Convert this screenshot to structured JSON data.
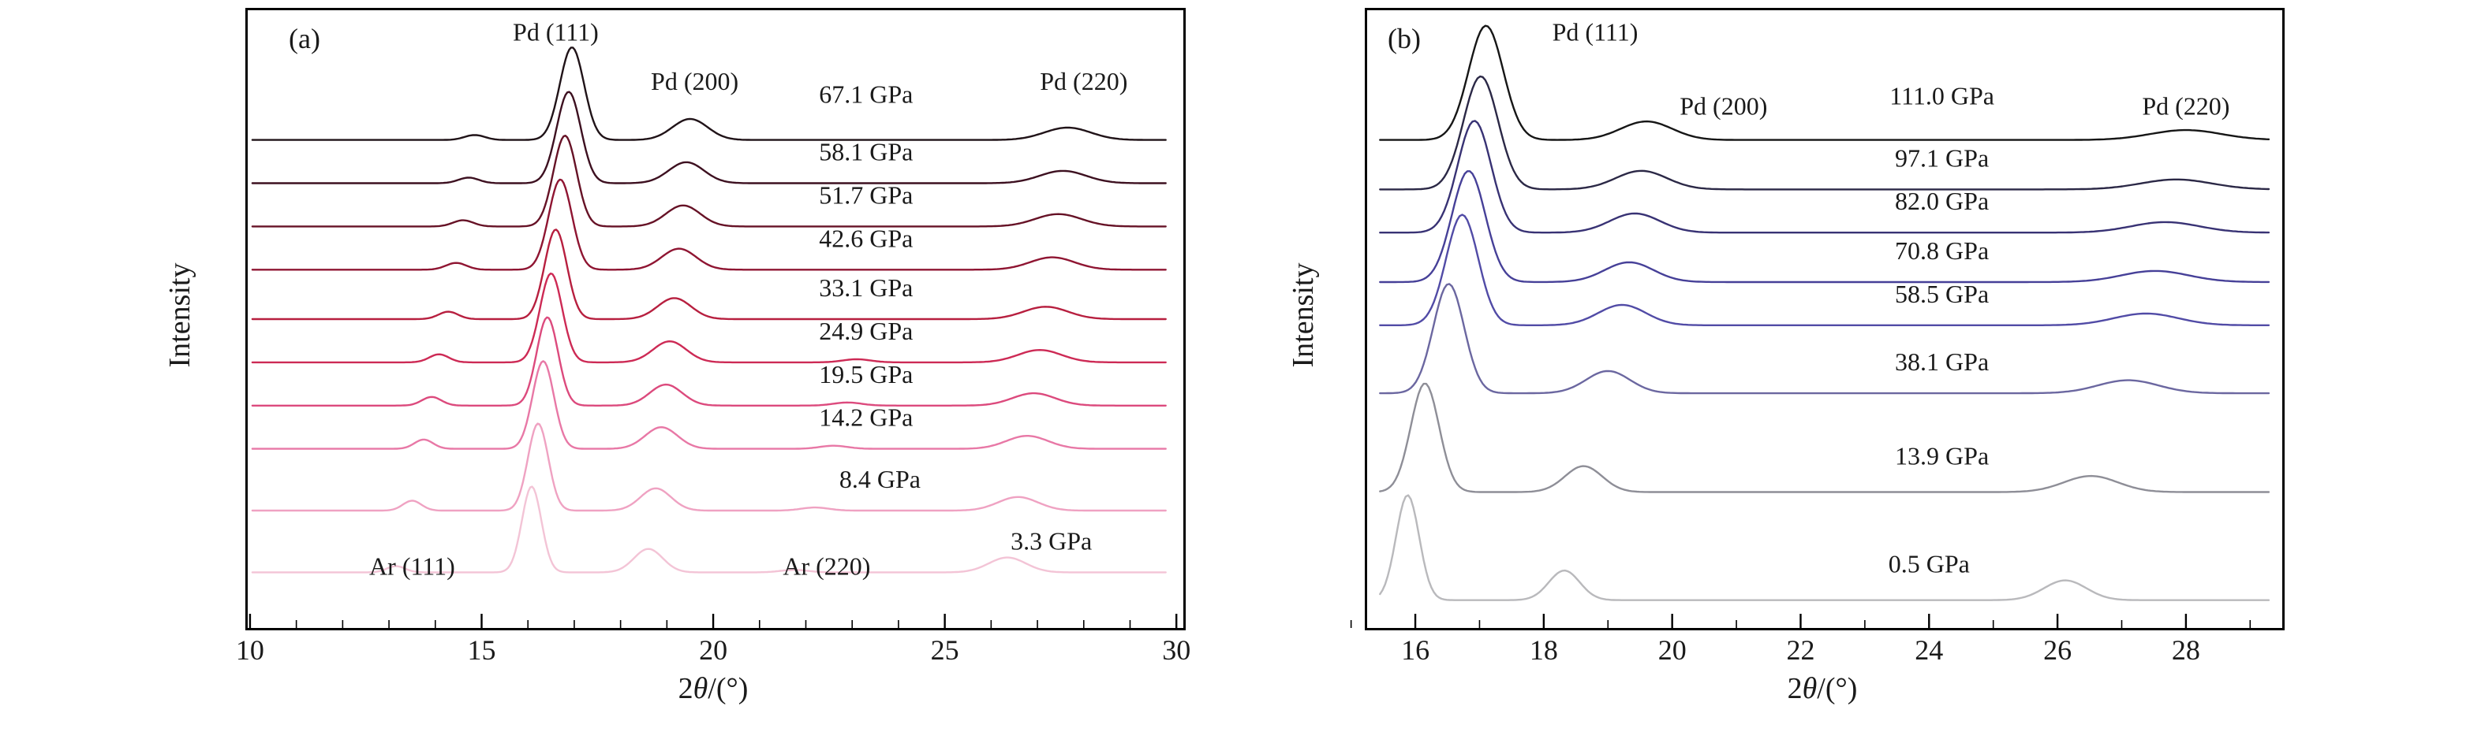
{
  "figure": {
    "background": "#ffffff",
    "axis_color": "#000000",
    "text_color": "#1a1a1a"
  },
  "chart_data": [
    {
      "type": "line",
      "panel_label": "(a)",
      "title": "",
      "xlabel": "2θ/(°)",
      "ylabel": "Intensity",
      "xlim": [
        9.95,
        30.15
      ],
      "x_ticks": [
        10,
        15,
        20,
        25,
        30
      ],
      "x_minor_ticks": [
        11,
        12,
        13,
        14,
        16,
        17,
        18,
        19,
        21,
        22,
        23,
        24,
        26,
        27,
        28,
        29
      ],
      "draw_range": [
        10.05,
        29.8
      ],
      "grid": false,
      "legend": "none",
      "annotations": [
        {
          "text": "Pd (111)",
          "x": 16.6,
          "y": 0.035
        },
        {
          "text": "Pd (200)",
          "x": 19.6,
          "y": 0.115
        },
        {
          "text": "Pd (220)",
          "x": 28.0,
          "y": 0.115
        },
        {
          "text": "Ar (111)",
          "x": 13.5,
          "y": 0.9
        },
        {
          "text": "Ar (220)",
          "x": 22.45,
          "y": 0.9
        }
      ],
      "series": [
        {
          "label": "67.1 GPa",
          "color": "#201318",
          "offset": 0.79,
          "label_x": 23.3,
          "label_dy": 58,
          "peaks": [
            {
              "c": 16.95,
              "h": 0.15,
              "w": 0.26
            },
            {
              "c": 19.5,
              "h": 0.034,
              "w": 0.38
            },
            {
              "c": 27.65,
              "h": 0.02,
              "w": 0.5
            },
            {
              "c": 14.85,
              "h": 0.008,
              "w": 0.22
            }
          ]
        },
        {
          "label": "58.1 GPa",
          "color": "#3d1020",
          "offset": 0.72,
          "label_x": 23.3,
          "peaks": [
            {
              "c": 16.88,
              "h": 0.148,
              "w": 0.26
            },
            {
              "c": 19.42,
              "h": 0.034,
              "w": 0.38
            },
            {
              "c": 27.55,
              "h": 0.02,
              "w": 0.5
            },
            {
              "c": 14.72,
              "h": 0.009,
              "w": 0.22
            }
          ]
        },
        {
          "label": "51.7 GPa",
          "color": "#661226",
          "offset": 0.65,
          "label_x": 23.3,
          "peaks": [
            {
              "c": 16.8,
              "h": 0.147,
              "w": 0.25
            },
            {
              "c": 19.35,
              "h": 0.034,
              "w": 0.37
            },
            {
              "c": 27.45,
              "h": 0.02,
              "w": 0.5
            },
            {
              "c": 14.6,
              "h": 0.01,
              "w": 0.22
            }
          ]
        },
        {
          "label": "42.6 GPa",
          "color": "#8f1532",
          "offset": 0.58,
          "label_x": 23.3,
          "peaks": [
            {
              "c": 16.7,
              "h": 0.146,
              "w": 0.25
            },
            {
              "c": 19.26,
              "h": 0.034,
              "w": 0.37
            },
            {
              "c": 27.32,
              "h": 0.02,
              "w": 0.48
            },
            {
              "c": 14.45,
              "h": 0.011,
              "w": 0.22
            }
          ]
        },
        {
          "label": "33.1 GPa",
          "color": "#b71f3f",
          "offset": 0.5,
          "label_x": 23.3,
          "peaks": [
            {
              "c": 16.6,
              "h": 0.145,
              "w": 0.24
            },
            {
              "c": 19.16,
              "h": 0.034,
              "w": 0.36
            },
            {
              "c": 27.18,
              "h": 0.02,
              "w": 0.48
            },
            {
              "c": 14.28,
              "h": 0.012,
              "w": 0.21
            }
          ]
        },
        {
          "label": "24.9 GPa",
          "color": "#cd2a55",
          "offset": 0.43,
          "label_x": 23.3,
          "peaks": [
            {
              "c": 16.5,
              "h": 0.144,
              "w": 0.24
            },
            {
              "c": 19.06,
              "h": 0.034,
              "w": 0.36
            },
            {
              "c": 27.05,
              "h": 0.02,
              "w": 0.47
            },
            {
              "c": 14.08,
              "h": 0.013,
              "w": 0.21
            },
            {
              "c": 23.1,
              "h": 0.005,
              "w": 0.3
            }
          ]
        },
        {
          "label": "19.5 GPa",
          "color": "#dc4a7d",
          "offset": 0.36,
          "label_x": 23.3,
          "peaks": [
            {
              "c": 16.42,
              "h": 0.143,
              "w": 0.23
            },
            {
              "c": 18.98,
              "h": 0.034,
              "w": 0.35
            },
            {
              "c": 26.92,
              "h": 0.02,
              "w": 0.46
            },
            {
              "c": 13.92,
              "h": 0.014,
              "w": 0.21
            },
            {
              "c": 22.9,
              "h": 0.005,
              "w": 0.3
            }
          ]
        },
        {
          "label": "14.2 GPa",
          "color": "#e878a6",
          "offset": 0.29,
          "label_x": 23.3,
          "peaks": [
            {
              "c": 16.33,
              "h": 0.142,
              "w": 0.23
            },
            {
              "c": 18.88,
              "h": 0.035,
              "w": 0.35
            },
            {
              "c": 26.78,
              "h": 0.021,
              "w": 0.45
            },
            {
              "c": 13.75,
              "h": 0.015,
              "w": 0.2
            },
            {
              "c": 22.6,
              "h": 0.005,
              "w": 0.3
            }
          ]
        },
        {
          "label": "8.4 GPa",
          "color": "#efa2c2",
          "offset": 0.19,
          "label_x": 23.6,
          "peaks": [
            {
              "c": 16.22,
              "h": 0.141,
              "w": 0.22
            },
            {
              "c": 18.76,
              "h": 0.036,
              "w": 0.33
            },
            {
              "c": 26.58,
              "h": 0.022,
              "w": 0.43
            },
            {
              "c": 13.5,
              "h": 0.016,
              "w": 0.2
            },
            {
              "c": 22.2,
              "h": 0.005,
              "w": 0.3
            }
          ]
        },
        {
          "label": "3.3 GPa",
          "color": "#f3c4d6",
          "offset": 0.09,
          "label_x": 27.3,
          "peaks": [
            {
              "c": 16.08,
              "h": 0.139,
              "w": 0.21
            },
            {
              "c": 18.6,
              "h": 0.038,
              "w": 0.31
            },
            {
              "c": 26.35,
              "h": 0.024,
              "w": 0.4
            },
            {
              "c": 13.15,
              "h": 0.01,
              "w": 0.2
            },
            {
              "c": 21.75,
              "h": 0.004,
              "w": 0.3
            }
          ]
        }
      ]
    },
    {
      "type": "line",
      "panel_label": "(b)",
      "title": "",
      "xlabel": "2θ/(°)",
      "ylabel": "Intensity",
      "xlim": [
        15.25,
        29.5
      ],
      "x_ticks": [
        16,
        18,
        20,
        22,
        24,
        26,
        28
      ],
      "x_minor_ticks": [
        15,
        17,
        19,
        21,
        23,
        25,
        27,
        29
      ],
      "draw_range": [
        15.45,
        29.3
      ],
      "grid": false,
      "legend": "none",
      "annotations": [
        {
          "text": "Pd (111)",
          "x": 18.8,
          "y": 0.035
        },
        {
          "text": "Pd (200)",
          "x": 20.8,
          "y": 0.155
        },
        {
          "text": "Pd (220)",
          "x": 28.0,
          "y": 0.155
        }
      ],
      "series": [
        {
          "label": "111.0 GPa",
          "color": "#161616",
          "offset": 0.79,
          "label_x": 24.2,
          "label_dy": 56,
          "peaks": [
            {
              "c": 17.1,
              "h": 0.185,
              "w": 0.27
            },
            {
              "c": 19.6,
              "h": 0.03,
              "w": 0.4
            },
            {
              "c": 28.0,
              "h": 0.016,
              "w": 0.55
            }
          ]
        },
        {
          "label": "97.1 GPa",
          "color": "#2b2846",
          "offset": 0.71,
          "label_x": 24.2,
          "peaks": [
            {
              "c": 17.02,
              "h": 0.183,
              "w": 0.27
            },
            {
              "c": 19.52,
              "h": 0.03,
              "w": 0.4
            },
            {
              "c": 27.85,
              "h": 0.016,
              "w": 0.55
            }
          ]
        },
        {
          "label": "82.0 GPa",
          "color": "#383274",
          "offset": 0.64,
          "label_x": 24.2,
          "peaks": [
            {
              "c": 16.92,
              "h": 0.181,
              "w": 0.26
            },
            {
              "c": 19.42,
              "h": 0.031,
              "w": 0.39
            },
            {
              "c": 27.68,
              "h": 0.017,
              "w": 0.53
            }
          ]
        },
        {
          "label": "70.8 GPa",
          "color": "#464098",
          "offset": 0.56,
          "label_x": 24.2,
          "peaks": [
            {
              "c": 16.83,
              "h": 0.18,
              "w": 0.26
            },
            {
              "c": 19.33,
              "h": 0.032,
              "w": 0.38
            },
            {
              "c": 27.52,
              "h": 0.018,
              "w": 0.52
            }
          ]
        },
        {
          "label": "58.5 GPa",
          "color": "#514ba6",
          "offset": 0.49,
          "label_x": 24.2,
          "peaks": [
            {
              "c": 16.73,
              "h": 0.179,
              "w": 0.25
            },
            {
              "c": 19.22,
              "h": 0.033,
              "w": 0.37
            },
            {
              "c": 27.38,
              "h": 0.019,
              "w": 0.5
            }
          ]
        },
        {
          "label": "38.1 GPa",
          "color": "#6b67a0",
          "offset": 0.38,
          "label_x": 24.2,
          "peaks": [
            {
              "c": 16.52,
              "h": 0.177,
              "w": 0.24
            },
            {
              "c": 19.0,
              "h": 0.036,
              "w": 0.34
            },
            {
              "c": 27.1,
              "h": 0.021,
              "w": 0.47
            }
          ]
        },
        {
          "label": "13.9 GPa",
          "color": "#8e8e97",
          "offset": 0.22,
          "label_x": 24.2,
          "label_dy": 46,
          "peaks": [
            {
              "c": 16.15,
              "h": 0.176,
              "w": 0.22
            },
            {
              "c": 18.62,
              "h": 0.042,
              "w": 0.29
            },
            {
              "c": 26.52,
              "h": 0.026,
              "w": 0.42
            }
          ]
        },
        {
          "label": "0.5 GPa",
          "color": "#b9b9bc",
          "offset": 0.045,
          "label_x": 24.0,
          "label_dy": 46,
          "peaks": [
            {
              "c": 15.88,
              "h": 0.17,
              "w": 0.18
            },
            {
              "c": 18.32,
              "h": 0.048,
              "w": 0.24
            },
            {
              "c": 26.12,
              "h": 0.032,
              "w": 0.33
            }
          ]
        }
      ]
    }
  ]
}
